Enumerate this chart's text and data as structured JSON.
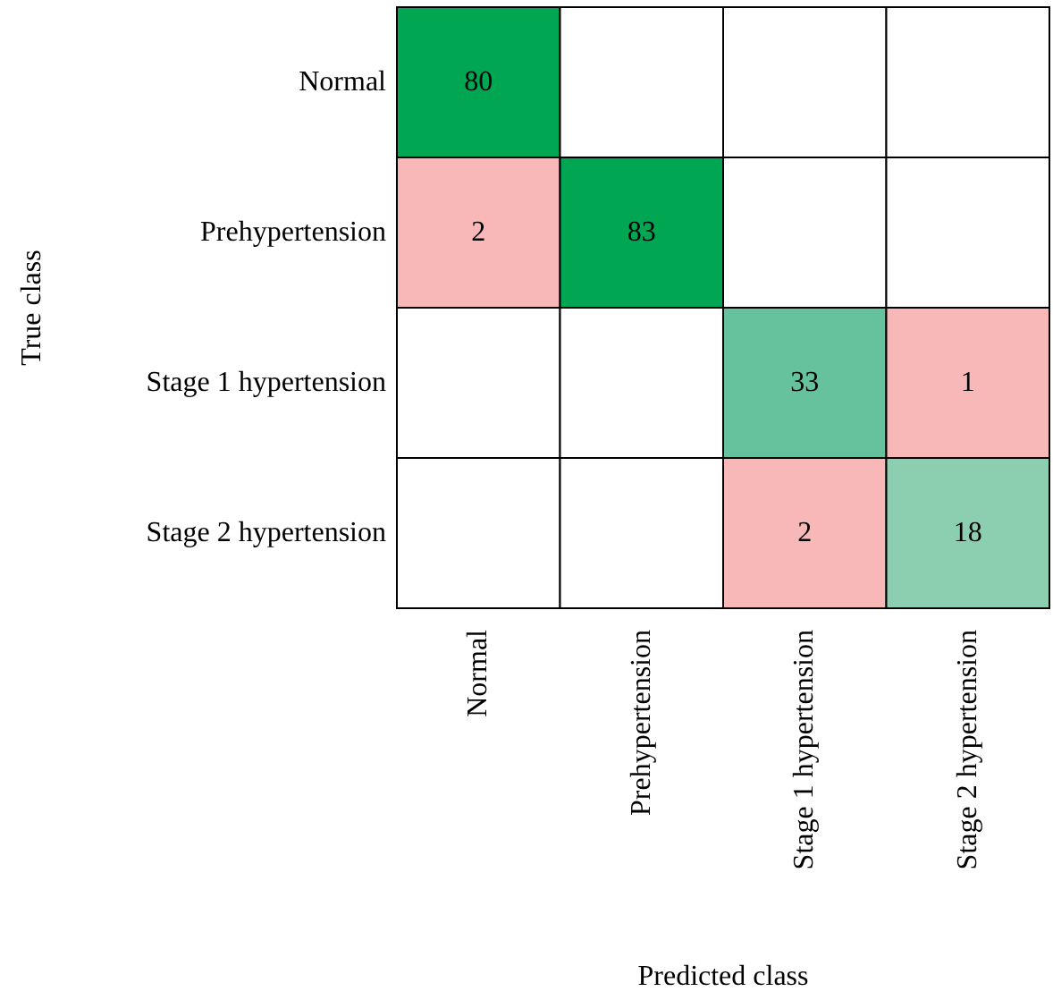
{
  "chart_data": {
    "type": "heatmap",
    "xlabel": "Predicted class",
    "ylabel": "True class",
    "data_labels": true,
    "categories": [
      "Normal",
      "Prehypertension",
      "Stage 1 hypertension",
      "Stage 2 hypertension"
    ],
    "y_categories": [
      "Normal",
      "Prehypertension",
      "Stage 1 hypertension",
      "Stage 2 hypertension"
    ],
    "cells": [
      [
        80,
        null,
        null,
        null
      ],
      [
        2,
        83,
        null,
        null
      ],
      [
        null,
        null,
        33,
        1
      ],
      [
        null,
        null,
        2,
        18
      ]
    ],
    "colors": [
      [
        "#00a651",
        null,
        null,
        null
      ],
      [
        "#f8b8b8",
        "#00a651",
        null,
        null
      ],
      [
        null,
        null,
        "#66c29d",
        "#f8b8b8"
      ],
      [
        null,
        null,
        "#f8b8b8",
        "#8ccfb0"
      ]
    ]
  }
}
